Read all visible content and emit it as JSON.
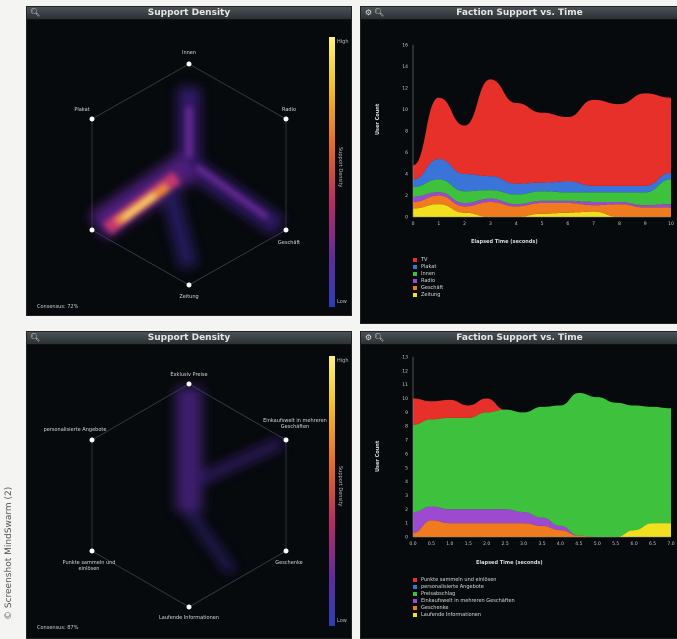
{
  "credit": "© Screenshot MindSwarm (2)",
  "panels": {
    "density_top": {
      "title": "Support Density",
      "nodes": {
        "top": "Innen",
        "upper_left": "Plakat",
        "upper_right": "Radio",
        "lower_right": "Geschäft",
        "bottom": "Zeitung",
        "lower_left": ""
      },
      "scale_high": "High",
      "scale_low": "Low",
      "scale_title": "Support Density",
      "consensus": "Consensus: 72%"
    },
    "faction_top": {
      "title": "Faction Support vs. Time",
      "ylabel": "User Count",
      "xlabel": "Elapsed Time (seconds)",
      "legend": [
        {
          "label": "TV",
          "color": "#e8302a"
        },
        {
          "label": "Plakat",
          "color": "#3a74d8"
        },
        {
          "label": "Innen",
          "color": "#3ec23e"
        },
        {
          "label": "Radio",
          "color": "#9c4bd0"
        },
        {
          "label": "Geschäft",
          "color": "#f07a1e"
        },
        {
          "label": "Zeitung",
          "color": "#f2e01e"
        }
      ]
    },
    "density_bottom": {
      "title": "Support Density",
      "nodes": {
        "top": "Exklusiv Preise",
        "upper_left": "personalisierte Angebote",
        "upper_right": "Einkaufswelt in mehreren Geschäften",
        "lower_right": "Geschenke",
        "bottom": "Laufende Informationen",
        "lower_left": "Punkte sammeln und einlösen"
      },
      "scale_high": "High",
      "scale_low": "Low",
      "scale_title": "Support Density",
      "consensus": "Consensus: 87%"
    },
    "faction_bottom": {
      "title": "Faction Support vs. Time",
      "ylabel": "User Count",
      "xlabel": "Elapsed Time (seconds)",
      "legend": [
        {
          "label": "Punkte sammeln und einlösen",
          "color": "#e8302a"
        },
        {
          "label": "personalisierte Angebote",
          "color": "#3a74d8"
        },
        {
          "label": "Preisabschlag",
          "color": "#3ec23e"
        },
        {
          "label": "Einkaufswelt in mehreren Geschäften",
          "color": "#9c4bd0"
        },
        {
          "label": "Geschenke",
          "color": "#f07a1e"
        },
        {
          "label": "Laufende Informationen",
          "color": "#f2e01e"
        }
      ]
    }
  },
  "chart_data": [
    {
      "type": "area",
      "title": "Faction Support vs. Time",
      "xlabel": "Elapsed Time (seconds)",
      "ylabel": "User Count",
      "x": [
        0,
        1,
        2,
        3,
        4,
        5,
        6,
        7,
        8,
        9,
        10
      ],
      "xticks": [
        0,
        1,
        2,
        3,
        4,
        5,
        6,
        7,
        8,
        9,
        10
      ],
      "yticks": [
        0,
        2,
        4,
        6,
        8,
        10,
        12,
        14,
        16
      ],
      "ylim": [
        0,
        16
      ],
      "series": [
        {
          "name": "Zeitung",
          "color": "#f2e01e",
          "values": [
            0.8,
            1.2,
            0.4,
            0,
            0,
            0.3,
            0.4,
            0.5,
            0,
            0,
            0
          ]
        },
        {
          "name": "Geschäft",
          "color": "#f07a1e",
          "values": [
            0.6,
            0.8,
            0.6,
            1.4,
            1,
            1,
            0.9,
            0.6,
            1.2,
            0.9,
            0.9
          ]
        },
        {
          "name": "Radio",
          "color": "#9c4bd0",
          "values": [
            0.5,
            0.3,
            0.3,
            0.3,
            0.2,
            0.2,
            0.2,
            0.3,
            0.2,
            0.2,
            0.3
          ]
        },
        {
          "name": "Innen",
          "color": "#3ec23e",
          "values": [
            0.9,
            1.2,
            1.1,
            0.8,
            0.9,
            0.9,
            0.8,
            0.9,
            0.9,
            1.2,
            2.3
          ]
        },
        {
          "name": "Plakat",
          "color": "#3a74d8",
          "values": [
            0.7,
            1.9,
            1.6,
            1.3,
            1,
            0.8,
            1,
            0.6,
            0.6,
            0.6,
            0.6
          ]
        },
        {
          "name": "TV",
          "color": "#e8302a",
          "values": [
            1.3,
            5.7,
            4.5,
            9,
            7.5,
            6.5,
            6,
            8,
            7.6,
            8.6,
            7
          ]
        }
      ]
    },
    {
      "type": "area",
      "title": "Faction Support vs. Time",
      "xlabel": "Elapsed Time (seconds)",
      "ylabel": "User Count",
      "x": [
        0,
        0.5,
        1,
        1.5,
        2,
        2.5,
        3,
        3.5,
        4,
        4.5,
        5,
        5.5,
        6,
        6.5,
        7
      ],
      "xticks": [
        "0.0",
        "0.5",
        "1.0",
        "1.5",
        "2.0",
        "2.5",
        "3.0",
        "3.5",
        "4.0",
        "4.5",
        "5.0",
        "5.5",
        "6.0",
        "6.5",
        "7.0"
      ],
      "yticks": [
        0,
        1,
        2,
        3,
        4,
        5,
        6,
        7,
        8,
        9,
        10,
        11,
        12,
        13
      ],
      "ylim": [
        0,
        13
      ],
      "series": [
        {
          "name": "Laufende Informationen",
          "color": "#f2e01e",
          "values": [
            0,
            0,
            0,
            0,
            0,
            0,
            0,
            0,
            0,
            0,
            0,
            0,
            0.5,
            1,
            1
          ]
        },
        {
          "name": "Geschenke",
          "color": "#f07a1e",
          "values": [
            0.3,
            1.2,
            1,
            1,
            1,
            1,
            1,
            0.8,
            0.5,
            0.1,
            0,
            0,
            0,
            0,
            0
          ]
        },
        {
          "name": "Einkaufswelt in mehreren Geschäften",
          "color": "#9c4bd0",
          "values": [
            1.5,
            1,
            1,
            1,
            1,
            1,
            0.8,
            0.6,
            0.3,
            0,
            0,
            0,
            0,
            0,
            0
          ]
        },
        {
          "name": "personalisierte Angebote",
          "color": "#3a74d8",
          "values": [
            0,
            0,
            0,
            0,
            0,
            0,
            0,
            0,
            0,
            0,
            0,
            0,
            0,
            0,
            0
          ]
        },
        {
          "name": "Preisabschlag",
          "color": "#3ec23e",
          "values": [
            6.3,
            6.3,
            6.6,
            6.6,
            7,
            7.2,
            7.2,
            8,
            8.7,
            10.3,
            10.1,
            9.7,
            9,
            8.4,
            8.3
          ]
        },
        {
          "name": "Punkte sammeln und einlösen",
          "color": "#e8302a",
          "values": [
            1.9,
            1.3,
            1.3,
            0.9,
            1,
            0,
            0,
            0,
            0,
            0,
            0,
            0,
            0,
            0,
            0
          ]
        }
      ]
    }
  ]
}
